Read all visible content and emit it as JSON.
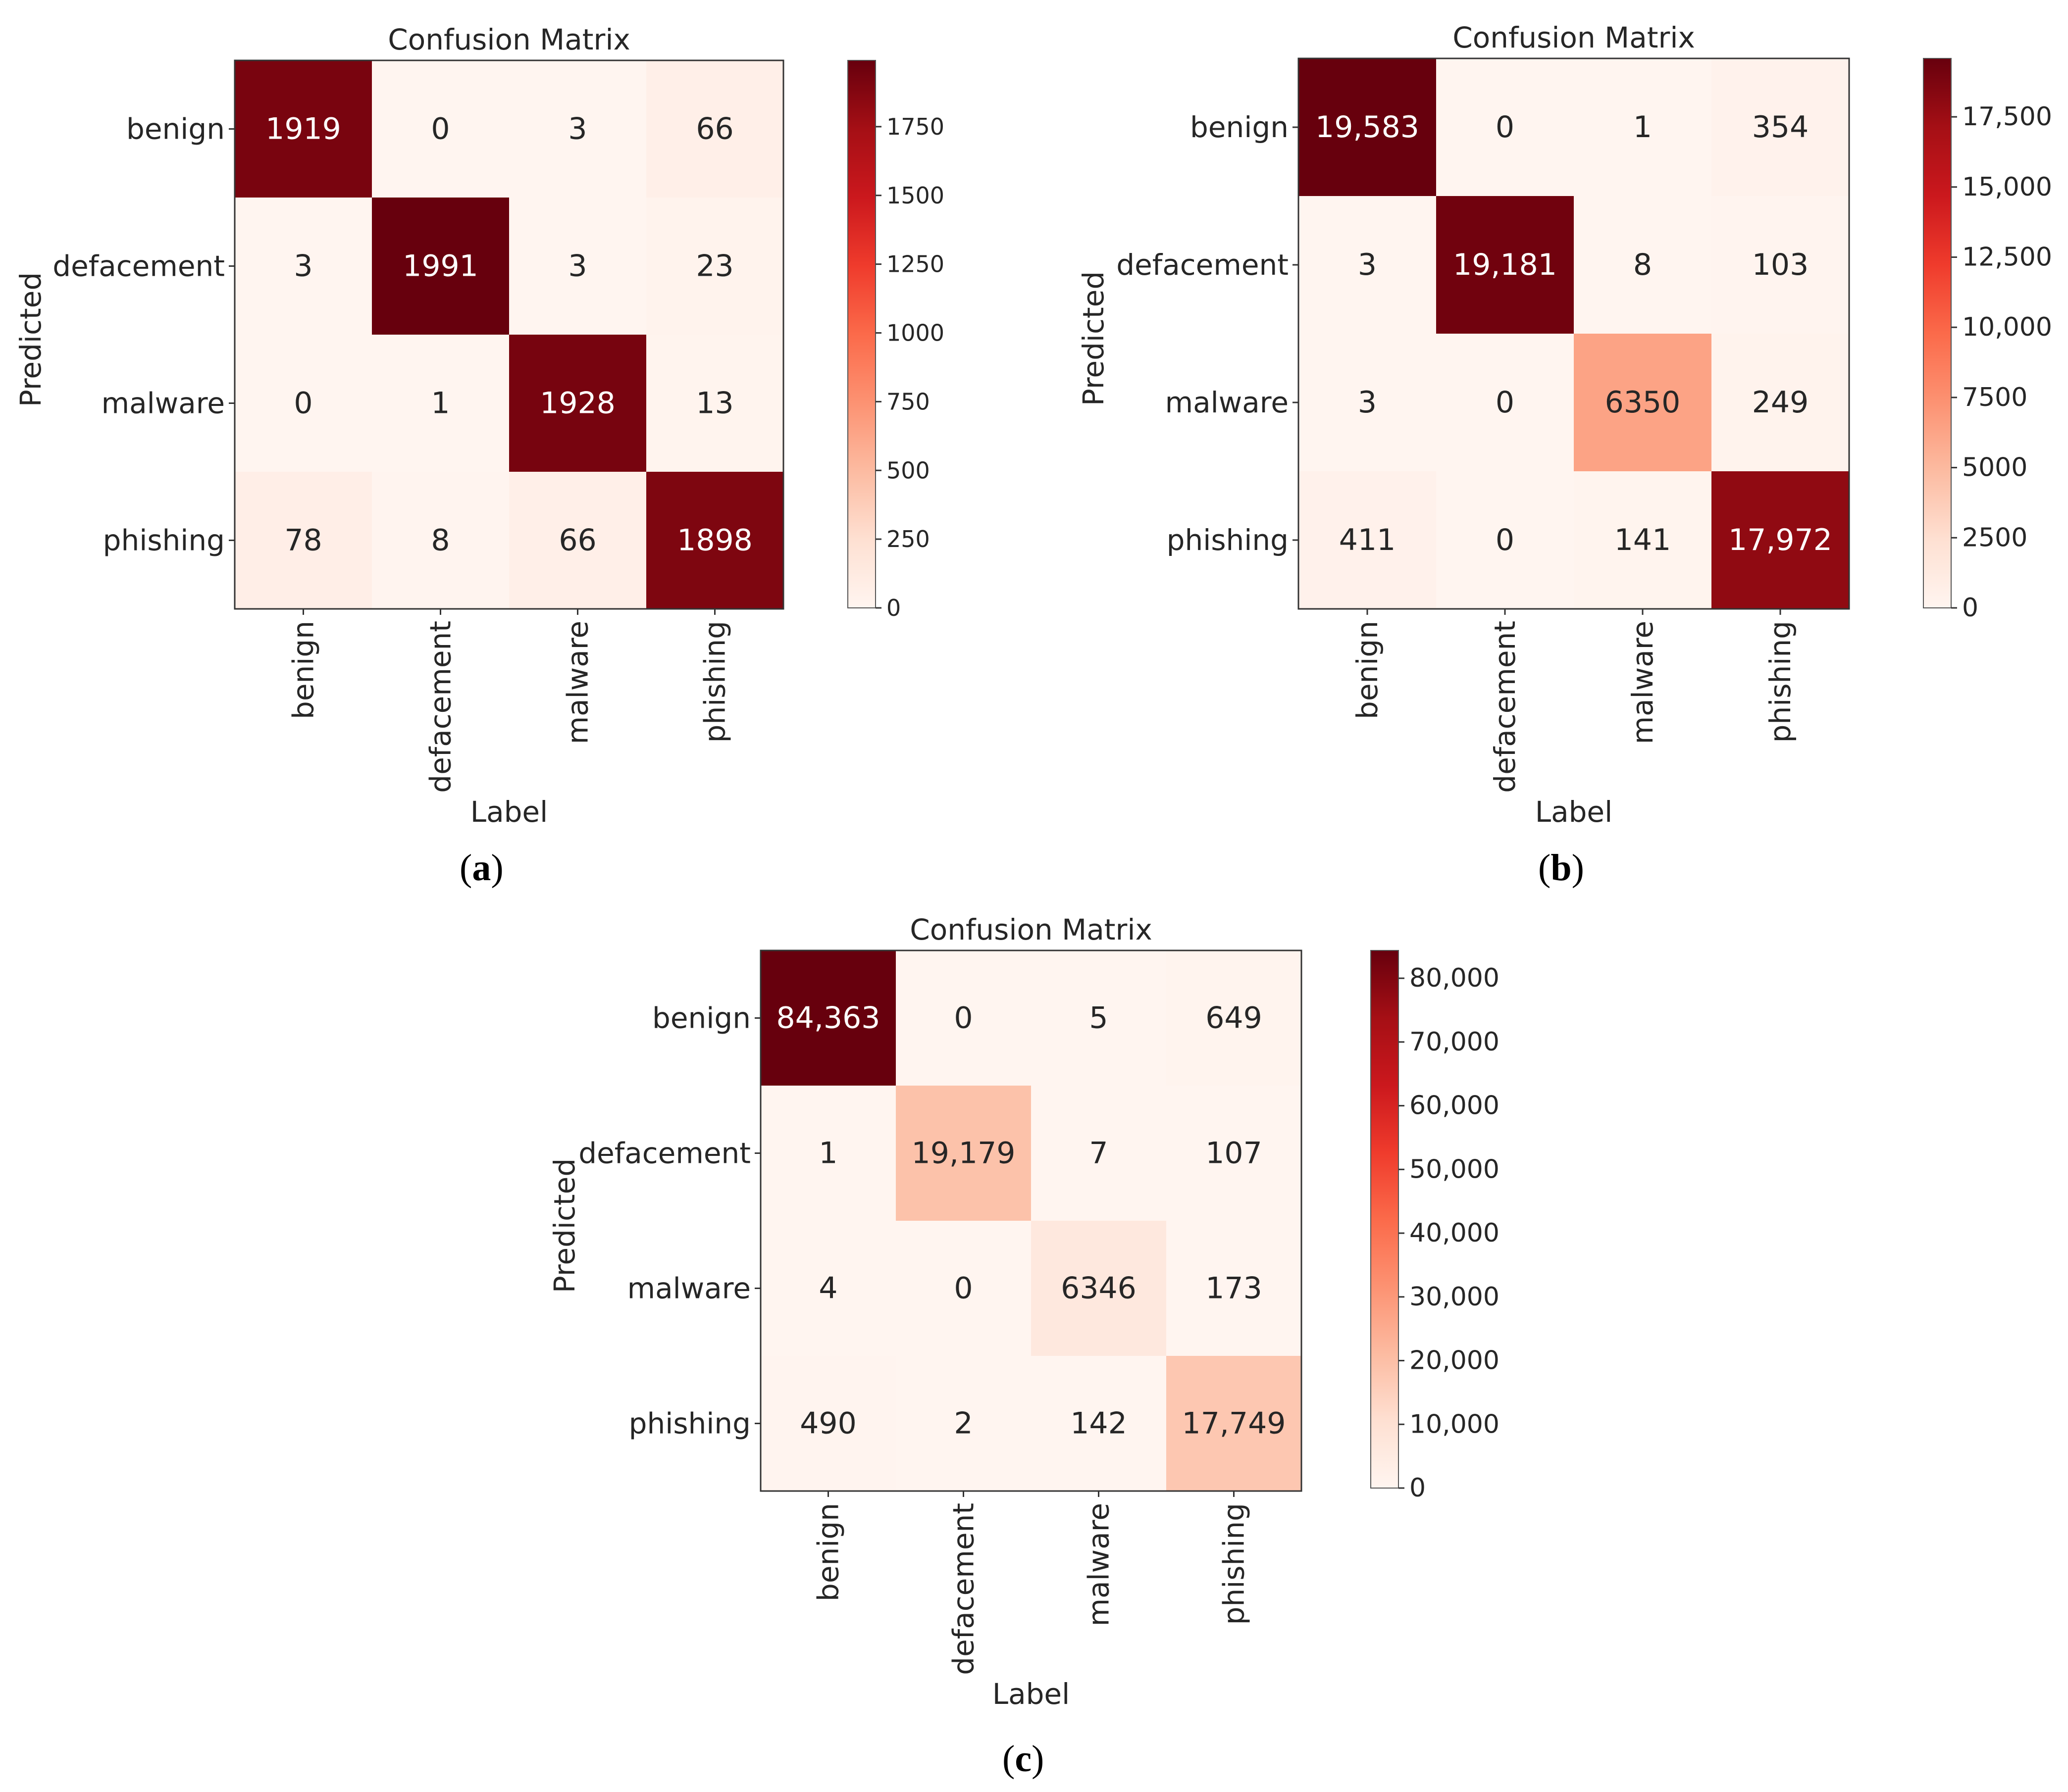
{
  "colormap": [
    "#fff5f0",
    "#fee0d2",
    "#fcbba1",
    "#fc9272",
    "#fb6a4a",
    "#ef3b2c",
    "#cb181d",
    "#a50f15",
    "#67000d"
  ],
  "chart_data": [
    {
      "type": "heatmap",
      "panel_label": "a",
      "title": "Confusion Matrix",
      "xlabel": "Label",
      "ylabel": "Predicted",
      "categories": [
        "benign",
        "defacement",
        "malware",
        "phishing"
      ],
      "matrix": [
        [
          1919,
          0,
          3,
          66
        ],
        [
          3,
          1991,
          3,
          23
        ],
        [
          0,
          1,
          1928,
          13
        ],
        [
          78,
          8,
          66,
          1898
        ]
      ],
      "cell_labels": [
        [
          "1919",
          "0",
          "3",
          "66"
        ],
        [
          "3",
          "1991",
          "3",
          "23"
        ],
        [
          "0",
          "1",
          "1928",
          "13"
        ],
        [
          "78",
          "8",
          "66",
          "1898"
        ]
      ],
      "colorbar": {
        "min": 0,
        "max": 1991,
        "ticks": [
          0,
          250,
          500,
          750,
          1000,
          1250,
          1500,
          1750
        ],
        "tick_labels": [
          "0",
          "250",
          "500",
          "750",
          "1000",
          "1250",
          "1500",
          "1750"
        ]
      }
    },
    {
      "type": "heatmap",
      "panel_label": "b",
      "title": "Confusion Matrix",
      "xlabel": "Label",
      "ylabel": "Predicted",
      "categories": [
        "benign",
        "defacement",
        "malware",
        "phishing"
      ],
      "matrix": [
        [
          19583,
          0,
          1,
          354
        ],
        [
          3,
          19181,
          8,
          103
        ],
        [
          3,
          0,
          6350,
          249
        ],
        [
          411,
          0,
          141,
          17972
        ]
      ],
      "cell_labels": [
        [
          "19,583",
          "0",
          "1",
          "354"
        ],
        [
          "3",
          "19,181",
          "8",
          "103"
        ],
        [
          "3",
          "0",
          "6350",
          "249"
        ],
        [
          "411",
          "0",
          "141",
          "17,972"
        ]
      ],
      "colorbar": {
        "min": 0,
        "max": 19583,
        "ticks": [
          0,
          2500,
          5000,
          7500,
          10000,
          12500,
          15000,
          17500
        ],
        "tick_labels": [
          "0",
          "2500",
          "5000",
          "7500",
          "10,000",
          "12,500",
          "15,000",
          "17,500"
        ]
      }
    },
    {
      "type": "heatmap",
      "panel_label": "c",
      "title": "Confusion Matrix",
      "xlabel": "Label",
      "ylabel": "Predicted",
      "categories": [
        "benign",
        "defacement",
        "malware",
        "phishing"
      ],
      "matrix": [
        [
          84363,
          0,
          5,
          649
        ],
        [
          1,
          19179,
          7,
          107
        ],
        [
          4,
          0,
          6346,
          173
        ],
        [
          490,
          2,
          142,
          17749
        ]
      ],
      "cell_labels": [
        [
          "84,363",
          "0",
          "5",
          "649"
        ],
        [
          "1",
          "19,179",
          "7",
          "107"
        ],
        [
          "4",
          "0",
          "6346",
          "173"
        ],
        [
          "490",
          "2",
          "142",
          "17,749"
        ]
      ],
      "colorbar": {
        "min": 0,
        "max": 84363,
        "ticks": [
          0,
          10000,
          20000,
          30000,
          40000,
          50000,
          60000,
          70000,
          80000
        ],
        "tick_labels": [
          "0",
          "10,000",
          "20,000",
          "30,000",
          "40,000",
          "50,000",
          "60,000",
          "70,000",
          "80,000"
        ]
      }
    }
  ]
}
